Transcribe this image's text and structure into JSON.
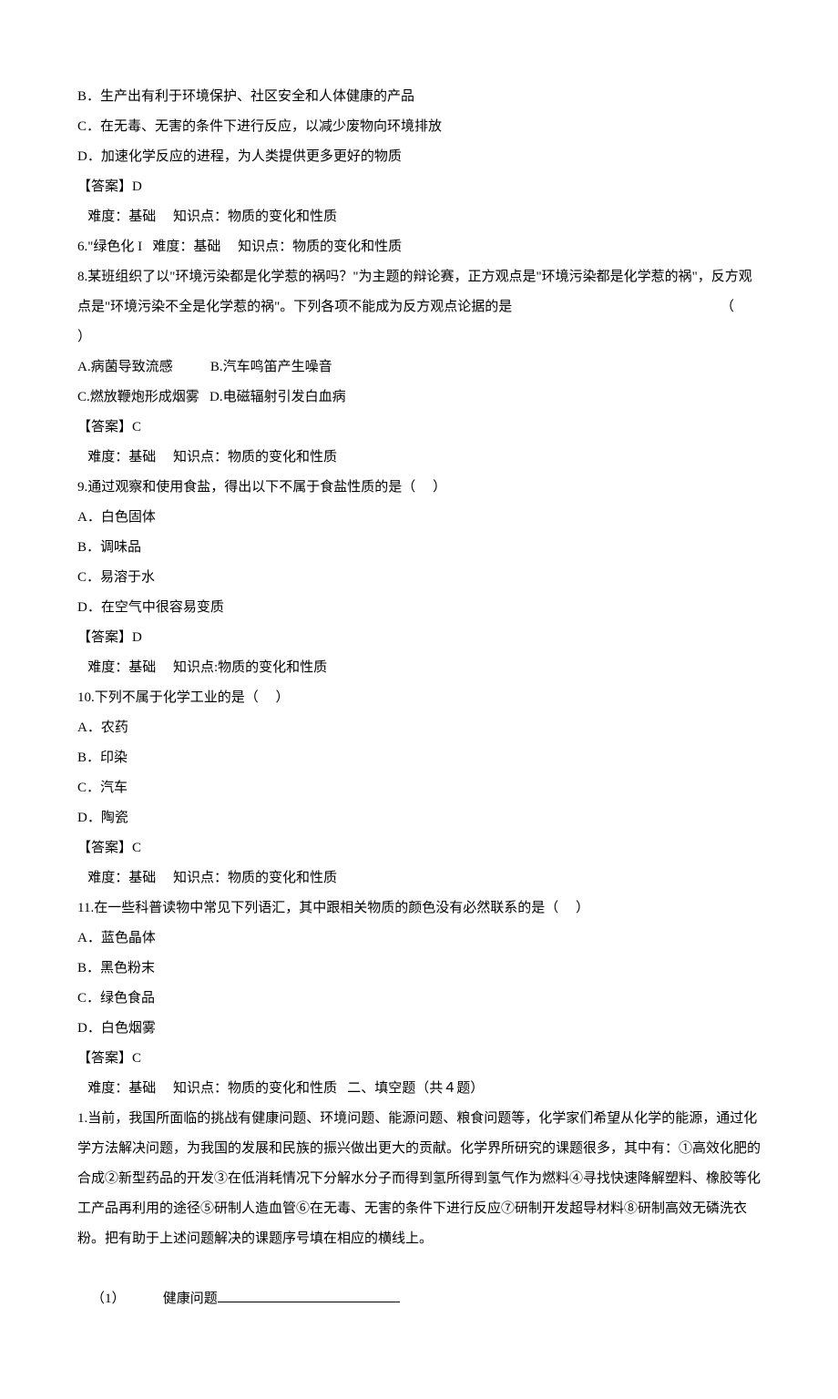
{
  "lines": [
    "B．生产出有利于环境保护、社区安全和人体健康的产品",
    "C．在无毒、无害的条件下进行反应，以减少废物向环境排放",
    "D．加速化学反应的进程，为人类提供更多更好的物质",
    "【答案】D",
    "   难度：基础     知识点：物质的变化和性质",
    "6.\"绿色化 I   难度：基础     知识点：物质的变化和性质",
    "8.某班组织了以\"环境污染都是化学惹的祸吗？\"为主题的辩论赛，正方观点是\"环境污染都是化学惹的祸\"，反方观点是\"环境污染不全是化学惹的祸\"。下列各项不能成为反方观点论据的是                                                             （      ）",
    "A.病菌导致流感           B.汽车鸣笛产生噪音",
    "C.燃放鞭炮形成烟雾   D.电磁辐射引发白血病",
    "【答案】C",
    "   难度：基础     知识点：物质的变化和性质",
    "9.通过观察和使用食盐，得出以下不属于食盐性质的是（     ）",
    "A．白色固体",
    "B．调味品",
    "C．易溶于水",
    "D．在空气中很容易变质",
    "【答案】D",
    "   难度：基础     知识点:物质的变化和性质",
    "10.下列不属于化学工业的是（     ）",
    "A．农药",
    "B．印染",
    "C．汽车",
    "D．陶瓷",
    "【答案】C",
    "   难度：基础     知识点：物质的变化和性质",
    "11.在一些科普读物中常见下列语汇，其中跟相关物质的颜色没有必然联系的是（     ）",
    "A．蓝色晶体",
    "B．黑色粉末",
    "C．绿色食品",
    "D．白色烟雾",
    "【答案】C",
    "   难度：基础     知识点：物质的变化和性质   二、填空题（共４题）",
    "1.当前，我国所面临的挑战有健康问题、环境问题、能源问题、粮食问题等，化学家们希望从化学的能源，通过化学方法解决问题，为我国的发展和民族的振兴做出更大的贡献。化学界所研究的课题很多，其中有：①高效化肥的合成②新型药品的开发③在低消耗情况下分解水分子而得到氢所得到氢气作为燃料④寻找快速降解塑料、橡胶等化工产品再利用的途径⑤研制人造血管⑥在无毒、无害的条件下进行反应⑦研制开发超导材料⑧研制高效无磷洗衣粉。把有助于上述问题解决的课题序号填在相应的横线上。"
  ],
  "fillBlank": {
    "number": "（1）",
    "label": "健康问题"
  },
  "colors": {
    "text": "#000000",
    "background": "#ffffff"
  },
  "fontSize": 15
}
